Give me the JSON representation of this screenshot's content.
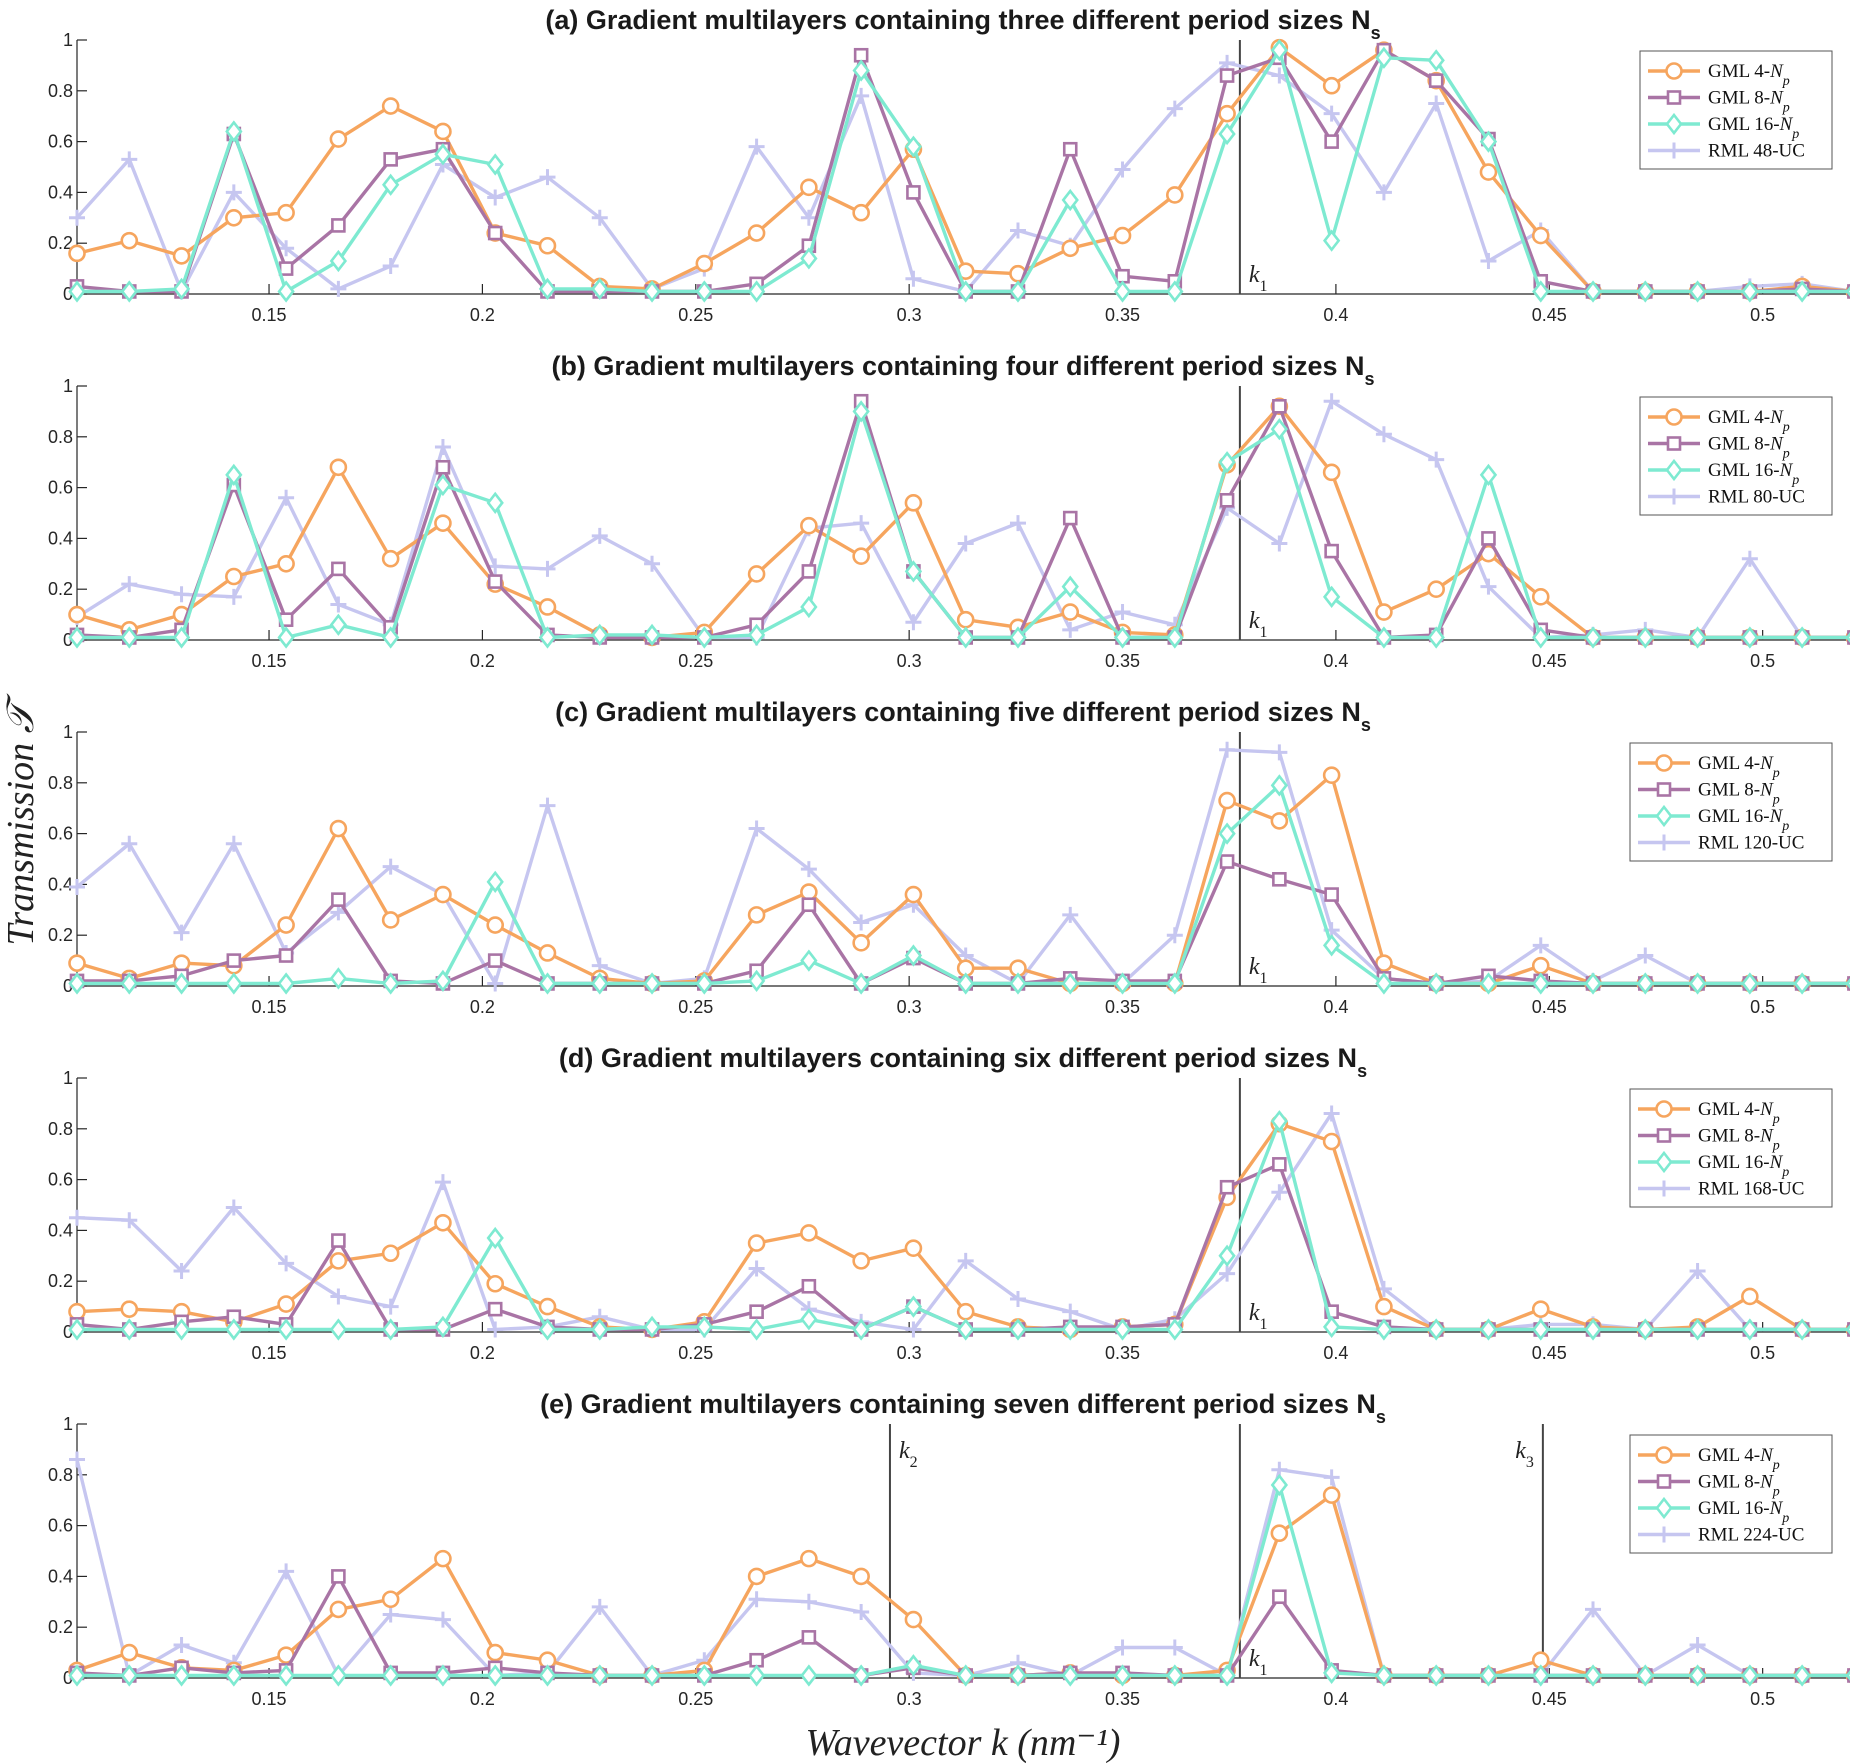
{
  "axis_labels": {
    "y": "Transmission 𝒯",
    "x": "Wavevector  k  (nm⁻¹)"
  },
  "legend_prefix": [
    "GML 4-",
    "GML 8-",
    "GML 16-"
  ],
  "legend_np": "N",
  "legend_np_sub": "p",
  "series_colors": [
    "#F6A55E",
    "#A974A5",
    "#7EEAD1",
    "#C6C6F0"
  ],
  "chart_data": [
    {
      "type": "line",
      "title": "(a) Gradient multilayers containing three different period sizes N",
      "title_sub": "s",
      "xlim": [
        0.105,
        0.52
      ],
      "ylim": [
        0,
        1
      ],
      "xticks": [
        "0.15",
        "0.2",
        "0.25",
        "0.3",
        "0.35",
        "0.4",
        "0.45",
        "0.5"
      ],
      "yticks": [
        "0",
        "0.2",
        "0.4",
        "0.6",
        "0.8",
        "1"
      ],
      "vlines": [
        {
          "x": 0.3775,
          "label": "k",
          "sub": "1"
        }
      ],
      "series": [
        {
          "name": "GML 4-Np",
          "marker": "circle",
          "values": [
            0.16,
            0.21,
            0.15,
            0.3,
            0.32,
            0.61,
            0.74,
            0.64,
            0.24,
            0.19,
            0.03,
            0.02,
            0.12,
            0.24,
            0.42,
            0.32,
            0.57,
            0.09,
            0.08,
            0.18,
            0.23,
            0.39,
            0.71,
            0.97,
            0.82,
            0.96,
            0.84,
            0.48,
            0.23,
            0.01,
            0.01,
            0.01,
            0.01,
            0.03,
            0.01
          ]
        },
        {
          "name": "GML 8-Np",
          "marker": "square",
          "values": [
            0.03,
            0.01,
            0.01,
            0.63,
            0.1,
            0.27,
            0.53,
            0.57,
            0.24,
            0.01,
            0.01,
            0.01,
            0.01,
            0.04,
            0.19,
            0.94,
            0.4,
            0.01,
            0.01,
            0.57,
            0.07,
            0.05,
            0.86,
            0.93,
            0.6,
            0.96,
            0.84,
            0.61,
            0.05,
            0.01,
            0.01,
            0.01,
            0.01,
            0.02,
            0.01
          ]
        },
        {
          "name": "GML 16-Np",
          "marker": "diamond",
          "values": [
            0.01,
            0.01,
            0.02,
            0.64,
            0.01,
            0.13,
            0.43,
            0.55,
            0.51,
            0.02,
            0.02,
            0.01,
            0.01,
            0.01,
            0.14,
            0.88,
            0.58,
            0.01,
            0.01,
            0.37,
            0.01,
            0.01,
            0.63,
            0.96,
            0.21,
            0.93,
            0.92,
            0.6,
            0.01,
            0.01,
            0.01,
            0.01,
            0.01,
            0.01,
            0.01
          ]
        },
        {
          "name": "RML 48-UC",
          "marker": "plus",
          "values": [
            0.3,
            0.53,
            0.01,
            0.4,
            0.18,
            0.02,
            0.11,
            0.51,
            0.38,
            0.46,
            0.3,
            0.02,
            0.1,
            0.58,
            0.3,
            0.78,
            0.06,
            0.01,
            0.25,
            0.19,
            0.49,
            0.73,
            0.91,
            0.86,
            0.71,
            0.4,
            0.75,
            0.13,
            0.25,
            0.01,
            0.01,
            0.01,
            0.03,
            0.04,
            0.01
          ]
        }
      ]
    },
    {
      "type": "line",
      "title": "(b) Gradient multilayers containing four different period sizes N",
      "title_sub": "s",
      "xlim": [
        0.105,
        0.52
      ],
      "ylim": [
        0,
        1
      ],
      "xticks": [
        "0.15",
        "0.2",
        "0.25",
        "0.3",
        "0.35",
        "0.4",
        "0.45",
        "0.5"
      ],
      "yticks": [
        "0",
        "0.2",
        "0.4",
        "0.6",
        "0.8",
        "1"
      ],
      "vlines": [
        {
          "x": 0.3775,
          "label": "k",
          "sub": "1"
        }
      ],
      "series": [
        {
          "name": "GML 4-Np",
          "marker": "circle",
          "values": [
            0.1,
            0.04,
            0.1,
            0.25,
            0.3,
            0.68,
            0.32,
            0.46,
            0.22,
            0.13,
            0.02,
            0.01,
            0.03,
            0.26,
            0.45,
            0.33,
            0.54,
            0.08,
            0.05,
            0.11,
            0.03,
            0.02,
            0.69,
            0.92,
            0.66,
            0.11,
            0.2,
            0.34,
            0.17,
            0.01,
            0.01,
            0.01,
            0.01,
            0.01,
            0.01
          ]
        },
        {
          "name": "GML 8-Np",
          "marker": "square",
          "values": [
            0.02,
            0.01,
            0.04,
            0.61,
            0.08,
            0.28,
            0.05,
            0.68,
            0.23,
            0.02,
            0.01,
            0.01,
            0.01,
            0.06,
            0.27,
            0.94,
            0.27,
            0.01,
            0.01,
            0.48,
            0.01,
            0.01,
            0.55,
            0.92,
            0.35,
            0.01,
            0.02,
            0.4,
            0.04,
            0.01,
            0.01,
            0.01,
            0.01,
            0.01,
            0.01
          ]
        },
        {
          "name": "GML 16-Np",
          "marker": "diamond",
          "values": [
            0.01,
            0.01,
            0.01,
            0.65,
            0.01,
            0.06,
            0.01,
            0.61,
            0.54,
            0.01,
            0.02,
            0.02,
            0.01,
            0.02,
            0.13,
            0.9,
            0.27,
            0.01,
            0.01,
            0.21,
            0.01,
            0.01,
            0.7,
            0.83,
            0.17,
            0.01,
            0.01,
            0.65,
            0.01,
            0.01,
            0.01,
            0.01,
            0.01,
            0.01,
            0.01
          ]
        },
        {
          "name": "RML 80-UC",
          "marker": "plus",
          "values": [
            0.09,
            0.22,
            0.18,
            0.17,
            0.56,
            0.14,
            0.06,
            0.76,
            0.29,
            0.28,
            0.41,
            0.3,
            0.01,
            0.01,
            0.44,
            0.46,
            0.07,
            0.38,
            0.46,
            0.04,
            0.11,
            0.06,
            0.52,
            0.38,
            0.94,
            0.81,
            0.71,
            0.21,
            0.01,
            0.02,
            0.04,
            0.01,
            0.32,
            0.01,
            0.01
          ]
        }
      ]
    },
    {
      "type": "line",
      "title": "(c) Gradient multilayers containing five different period sizes N",
      "title_sub": "s",
      "xlim": [
        0.105,
        0.52
      ],
      "ylim": [
        0,
        1
      ],
      "xticks": [
        "0.15",
        "0.2",
        "0.25",
        "0.3",
        "0.35",
        "0.4",
        "0.45",
        "0.5"
      ],
      "yticks": [
        "0",
        "0.2",
        "0.4",
        "0.6",
        "0.8",
        "1"
      ],
      "vlines": [
        {
          "x": 0.3775,
          "label": "k",
          "sub": "1"
        }
      ],
      "series": [
        {
          "name": "GML 4-Np",
          "marker": "circle",
          "values": [
            0.09,
            0.03,
            0.09,
            0.08,
            0.24,
            0.62,
            0.26,
            0.36,
            0.24,
            0.13,
            0.03,
            0.01,
            0.02,
            0.28,
            0.37,
            0.17,
            0.36,
            0.07,
            0.07,
            0.01,
            0.01,
            0.01,
            0.73,
            0.65,
            0.83,
            0.09,
            0.01,
            0.01,
            0.08,
            0.01,
            0.01,
            0.01,
            0.01,
            0.01,
            0.01
          ]
        },
        {
          "name": "GML 8-Np",
          "marker": "square",
          "values": [
            0.02,
            0.02,
            0.04,
            0.1,
            0.12,
            0.34,
            0.02,
            0.01,
            0.1,
            0.01,
            0.01,
            0.01,
            0.01,
            0.06,
            0.32,
            0.01,
            0.11,
            0.01,
            0.01,
            0.03,
            0.02,
            0.02,
            0.49,
            0.42,
            0.36,
            0.03,
            0.01,
            0.04,
            0.02,
            0.01,
            0.01,
            0.01,
            0.01,
            0.01,
            0.01
          ]
        },
        {
          "name": "GML 16-Np",
          "marker": "diamond",
          "values": [
            0.01,
            0.01,
            0.01,
            0.01,
            0.01,
            0.03,
            0.01,
            0.02,
            0.41,
            0.01,
            0.01,
            0.01,
            0.01,
            0.02,
            0.1,
            0.01,
            0.12,
            0.01,
            0.01,
            0.01,
            0.01,
            0.01,
            0.6,
            0.79,
            0.16,
            0.01,
            0.01,
            0.01,
            0.01,
            0.01,
            0.01,
            0.01,
            0.01,
            0.01,
            0.01
          ]
        },
        {
          "name": "RML 120-UC",
          "marker": "plus",
          "values": [
            0.39,
            0.56,
            0.21,
            0.56,
            0.13,
            0.29,
            0.47,
            0.36,
            0.01,
            0.71,
            0.08,
            0.01,
            0.03,
            0.62,
            0.46,
            0.25,
            0.32,
            0.12,
            0.01,
            0.28,
            0.01,
            0.2,
            0.93,
            0.92,
            0.22,
            0.03,
            0.01,
            0.02,
            0.16,
            0.02,
            0.12,
            0.01,
            0.01,
            0.01,
            0.01
          ]
        }
      ]
    },
    {
      "type": "line",
      "title": "(d) Gradient multilayers containing six different period sizes N",
      "title_sub": "s",
      "xlim": [
        0.105,
        0.52
      ],
      "ylim": [
        0,
        1
      ],
      "xticks": [
        "0.15",
        "0.2",
        "0.25",
        "0.3",
        "0.35",
        "0.4",
        "0.45",
        "0.5"
      ],
      "yticks": [
        "0",
        "0.2",
        "0.4",
        "0.6",
        "0.8",
        "1"
      ],
      "vlines": [
        {
          "x": 0.3775,
          "label": "k",
          "sub": "1"
        }
      ],
      "series": [
        {
          "name": "GML 4-Np",
          "marker": "circle",
          "values": [
            0.08,
            0.09,
            0.08,
            0.04,
            0.11,
            0.28,
            0.31,
            0.43,
            0.19,
            0.1,
            0.02,
            0.01,
            0.04,
            0.35,
            0.39,
            0.28,
            0.33,
            0.08,
            0.02,
            0.01,
            0.02,
            0.03,
            0.53,
            0.82,
            0.75,
            0.1,
            0.01,
            0.01,
            0.09,
            0.02,
            0.01,
            0.02,
            0.14,
            0.01,
            0.01
          ]
        },
        {
          "name": "GML 8-Np",
          "marker": "square",
          "values": [
            0.03,
            0.01,
            0.04,
            0.06,
            0.03,
            0.36,
            0.01,
            0.01,
            0.09,
            0.02,
            0.01,
            0.01,
            0.03,
            0.08,
            0.18,
            0.01,
            0.1,
            0.01,
            0.01,
            0.02,
            0.02,
            0.03,
            0.57,
            0.66,
            0.08,
            0.02,
            0.01,
            0.01,
            0.01,
            0.01,
            0.01,
            0.01,
            0.01,
            0.01,
            0.01
          ]
        },
        {
          "name": "GML 16-Np",
          "marker": "diamond",
          "values": [
            0.01,
            0.01,
            0.01,
            0.01,
            0.01,
            0.01,
            0.01,
            0.02,
            0.37,
            0.01,
            0.01,
            0.02,
            0.02,
            0.01,
            0.05,
            0.01,
            0.1,
            0.01,
            0.01,
            0.01,
            0.01,
            0.01,
            0.3,
            0.83,
            0.02,
            0.01,
            0.01,
            0.01,
            0.01,
            0.01,
            0.01,
            0.01,
            0.01,
            0.01,
            0.01
          ]
        },
        {
          "name": "RML 168-UC",
          "marker": "plus",
          "values": [
            0.45,
            0.44,
            0.24,
            0.49,
            0.27,
            0.14,
            0.1,
            0.59,
            0.01,
            0.02,
            0.06,
            0.01,
            0.01,
            0.25,
            0.09,
            0.04,
            0.01,
            0.28,
            0.13,
            0.08,
            0.01,
            0.05,
            0.23,
            0.55,
            0.86,
            0.17,
            0.01,
            0.01,
            0.03,
            0.03,
            0.01,
            0.24,
            0.01,
            0.01,
            0.01
          ]
        }
      ]
    },
    {
      "type": "line",
      "title": "(e) Gradient multilayers containing seven different period sizes N",
      "title_sub": "s",
      "xlim": [
        0.105,
        0.52
      ],
      "ylim": [
        0,
        1
      ],
      "xticks": [
        "0.15",
        "0.2",
        "0.25",
        "0.3",
        "0.35",
        "0.4",
        "0.45",
        "0.5"
      ],
      "yticks": [
        "0",
        "0.2",
        "0.4",
        "0.6",
        "0.8",
        "1"
      ],
      "vlines": [
        {
          "x": 0.2955,
          "label": "k",
          "sub": "2",
          "pos": "top"
        },
        {
          "x": 0.3775,
          "label": "k",
          "sub": "1"
        },
        {
          "x": 0.4485,
          "label": "k",
          "sub": "3",
          "pos": "top-left"
        }
      ],
      "series": [
        {
          "name": "GML 4-Np",
          "marker": "circle",
          "values": [
            0.03,
            0.1,
            0.04,
            0.03,
            0.09,
            0.27,
            0.31,
            0.47,
            0.1,
            0.07,
            0.01,
            0.01,
            0.03,
            0.4,
            0.47,
            0.4,
            0.23,
            0.01,
            0.01,
            0.02,
            0.01,
            0.01,
            0.03,
            0.57,
            0.72,
            0.01,
            0.01,
            0.01,
            0.07,
            0.01,
            0.01,
            0.01,
            0.01,
            0.01,
            0.01
          ]
        },
        {
          "name": "GML 8-Np",
          "marker": "square",
          "values": [
            0.02,
            0.01,
            0.04,
            0.02,
            0.03,
            0.4,
            0.02,
            0.02,
            0.04,
            0.02,
            0.01,
            0.01,
            0.01,
            0.07,
            0.16,
            0.01,
            0.04,
            0.01,
            0.01,
            0.02,
            0.02,
            0.01,
            0.01,
            0.32,
            0.03,
            0.01,
            0.01,
            0.01,
            0.01,
            0.01,
            0.01,
            0.01,
            0.01,
            0.01,
            0.01
          ]
        },
        {
          "name": "GML 16-Np",
          "marker": "diamond",
          "values": [
            0.01,
            0.01,
            0.01,
            0.01,
            0.01,
            0.01,
            0.01,
            0.01,
            0.01,
            0.01,
            0.01,
            0.01,
            0.01,
            0.01,
            0.01,
            0.01,
            0.05,
            0.01,
            0.01,
            0.01,
            0.01,
            0.01,
            0.01,
            0.76,
            0.02,
            0.01,
            0.01,
            0.01,
            0.01,
            0.01,
            0.01,
            0.01,
            0.01,
            0.01,
            0.01
          ]
        },
        {
          "name": "RML 224-UC",
          "marker": "plus",
          "values": [
            0.86,
            0.01,
            0.13,
            0.06,
            0.42,
            0.01,
            0.25,
            0.23,
            0.01,
            0.02,
            0.28,
            0.01,
            0.07,
            0.31,
            0.3,
            0.26,
            0.02,
            0.01,
            0.06,
            0.01,
            0.12,
            0.12,
            0.01,
            0.82,
            0.79,
            0.01,
            0.01,
            0.01,
            0.01,
            0.27,
            0.01,
            0.13,
            0.01,
            0.01,
            0.01
          ]
        }
      ]
    }
  ]
}
